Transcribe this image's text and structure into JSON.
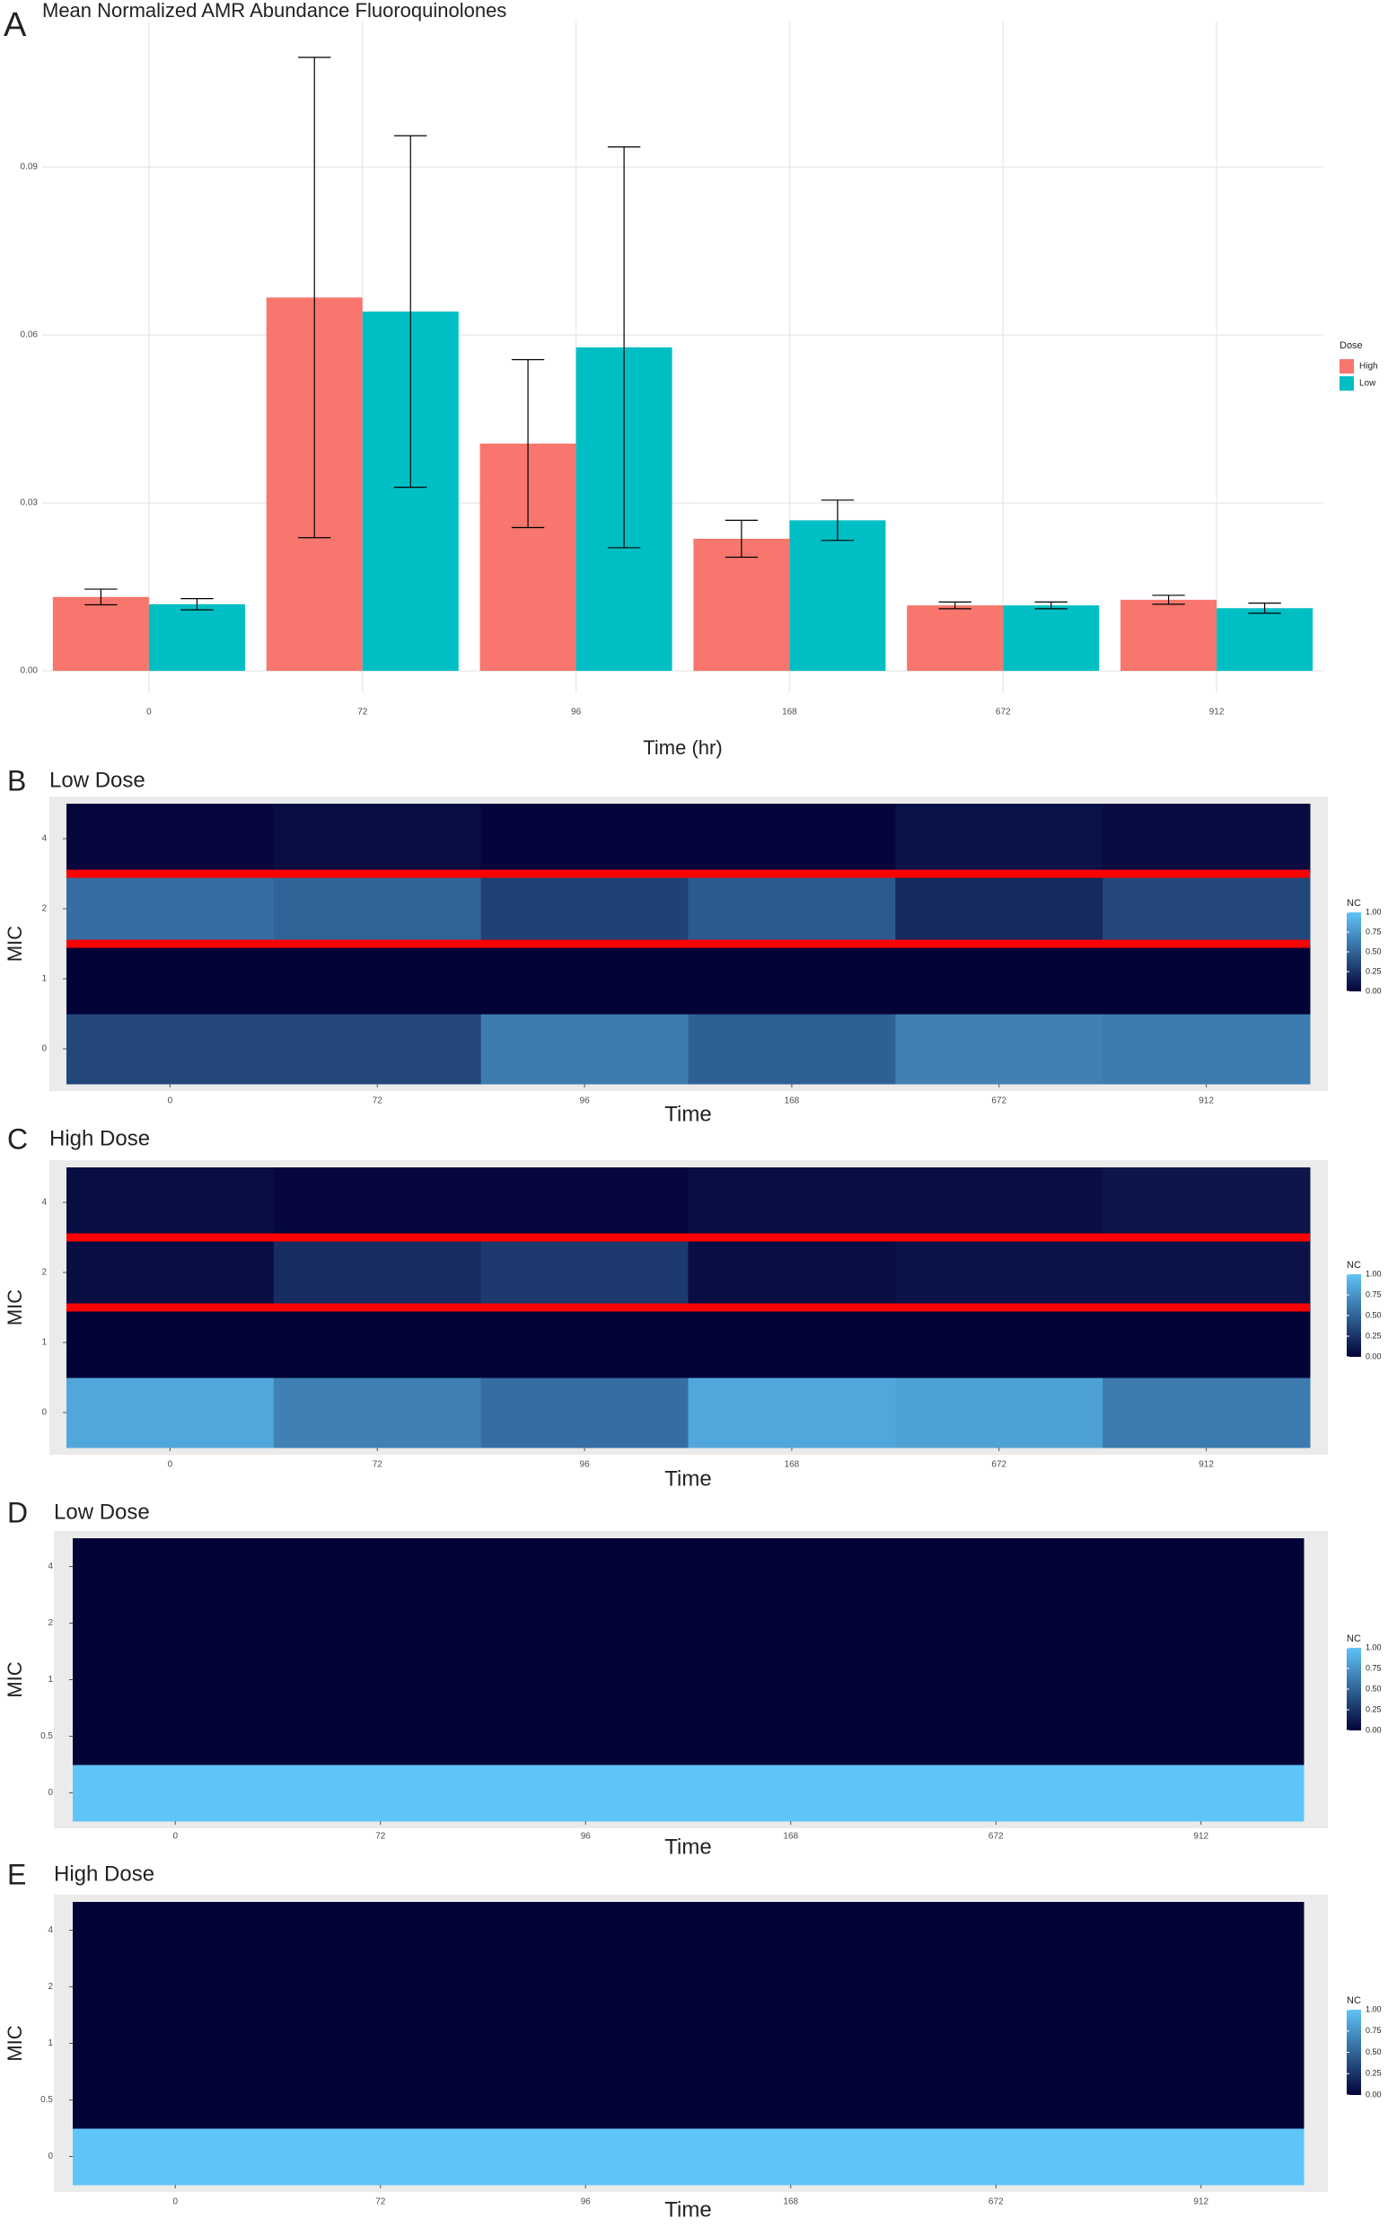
{
  "chart_data": [
    {
      "type": "bar",
      "panel_label": "A",
      "title": "Mean Normalized AMR Abundance Fluoroquinolones",
      "x_label": "Time (hr)",
      "categories": [
        "0",
        "72",
        "96",
        "168",
        "672",
        "912"
      ],
      "series": [
        {
          "name": "High",
          "color": "#F8766D",
          "values": [
            0.0132,
            0.0667,
            0.0406,
            0.0236,
            0.0117,
            0.0127
          ],
          "errors": [
            0.0014,
            0.0429,
            0.015,
            0.0033,
            0.0006,
            0.0008
          ]
        },
        {
          "name": "Low",
          "color": "#00BFC4",
          "values": [
            0.0119,
            0.0642,
            0.0578,
            0.0269,
            0.0117,
            0.0112
          ],
          "errors": [
            0.001,
            0.0314,
            0.0358,
            0.0036,
            0.0006,
            0.0009
          ]
        }
      ],
      "legend_title": "Dose",
      "legend": "right",
      "ylim": [
        -0.004,
        0.116
      ],
      "yticks": [
        {
          "value": 0,
          "label": "0.00"
        },
        {
          "value": 0.03,
          "label": "0.03"
        },
        {
          "value": 0.06,
          "label": "0.06"
        },
        {
          "value": 0.09,
          "label": "0.09"
        }
      ],
      "grid": true
    },
    {
      "type": "heatmap",
      "panel_label": "B",
      "title": "Low Dose",
      "x_label": "Time",
      "y_label": "MIC",
      "x": [
        "0",
        "72",
        "96",
        "168",
        "672",
        "912"
      ],
      "y": [
        "0",
        "1",
        "2",
        "4"
      ],
      "values": [
        [
          0.35,
          0.35,
          0.62,
          0.48,
          0.65,
          0.62
        ],
        [
          0,
          0,
          0,
          0,
          0,
          0
        ],
        [
          0.55,
          0.5,
          0.32,
          0.45,
          0.2,
          0.35
        ],
        [
          0.02,
          0.05,
          0.01,
          0.01,
          0.08,
          0.04
        ]
      ],
      "colorscale": {
        "low": "#030338",
        "high": "#5fc4f8"
      },
      "clim": [
        0,
        1
      ],
      "legend_title": "NC",
      "legend_ticks": [
        {
          "value": 0,
          "label": "0.00"
        },
        {
          "value": 0.25,
          "label": "0.25"
        },
        {
          "value": 0.5,
          "label": "0.50"
        },
        {
          "value": 0.75,
          "label": "0.75"
        },
        {
          "value": 1,
          "label": "1.00"
        }
      ],
      "threshold_line_color": "#ff0000"
    },
    {
      "type": "heatmap",
      "panel_label": "C",
      "title": "High Dose",
      "x_label": "Time",
      "y_label": "MIC",
      "x": [
        "0",
        "72",
        "96",
        "168",
        "672",
        "912"
      ],
      "y": [
        "0",
        "1",
        "2",
        "4"
      ],
      "values": [
        [
          0.85,
          0.65,
          0.55,
          0.85,
          0.82,
          0.62
        ],
        [
          0,
          0,
          0,
          0,
          0,
          0
        ],
        [
          0.05,
          0.22,
          0.28,
          0.05,
          0.08,
          0.08
        ],
        [
          0.05,
          0.02,
          0.02,
          0.05,
          0.05,
          0.1
        ]
      ],
      "colorscale": {
        "low": "#030338",
        "high": "#5fc4f8"
      },
      "clim": [
        0,
        1
      ],
      "legend_title": "NC",
      "legend_ticks": [
        {
          "value": 0,
          "label": "0.00"
        },
        {
          "value": 0.25,
          "label": "0.25"
        },
        {
          "value": 0.5,
          "label": "0.50"
        },
        {
          "value": 0.75,
          "label": "0.75"
        },
        {
          "value": 1,
          "label": "1.00"
        }
      ],
      "threshold_line_color": "#ff0000"
    },
    {
      "type": "heatmap",
      "panel_label": "D",
      "title": "Low Dose",
      "x_label": "Time",
      "y_label": "MIC",
      "x": [
        "0",
        "72",
        "96",
        "168",
        "672",
        "912"
      ],
      "y": [
        "0",
        "0.5",
        "1",
        "2",
        "4"
      ],
      "values": [
        [
          1,
          1,
          1,
          1,
          1,
          1
        ],
        [
          0,
          0,
          0,
          0,
          0,
          0
        ],
        [
          0,
          0,
          0,
          0,
          0,
          0
        ],
        [
          0,
          0,
          0,
          0,
          0,
          0
        ],
        [
          0,
          0,
          0,
          0,
          0,
          0
        ]
      ],
      "colorscale": {
        "low": "#030338",
        "high": "#5fc4f8"
      },
      "clim": [
        0,
        1
      ],
      "legend_title": "NC",
      "legend_ticks": [
        {
          "value": 0,
          "label": "0.00"
        },
        {
          "value": 0.25,
          "label": "0.25"
        },
        {
          "value": 0.5,
          "label": "0.50"
        },
        {
          "value": 0.75,
          "label": "0.75"
        },
        {
          "value": 1,
          "label": "1.00"
        }
      ]
    },
    {
      "type": "heatmap",
      "panel_label": "E",
      "title": "High Dose",
      "x_label": "Time",
      "y_label": "MIC",
      "x": [
        "0",
        "72",
        "96",
        "168",
        "672",
        "912"
      ],
      "y": [
        "0",
        "0.5",
        "1",
        "2",
        "4"
      ],
      "values": [
        [
          1,
          1,
          1,
          1,
          1,
          1
        ],
        [
          0,
          0,
          0,
          0,
          0,
          0
        ],
        [
          0,
          0,
          0,
          0,
          0,
          0
        ],
        [
          0,
          0,
          0,
          0,
          0,
          0
        ],
        [
          0,
          0,
          0,
          0,
          0,
          0
        ]
      ],
      "colorscale": {
        "low": "#030338",
        "high": "#5fc4f8"
      },
      "clim": [
        0,
        1
      ],
      "legend_title": "NC",
      "legend_ticks": [
        {
          "value": 0,
          "label": "0.00"
        },
        {
          "value": 0.25,
          "label": "0.25"
        },
        {
          "value": 0.5,
          "label": "0.50"
        },
        {
          "value": 0.75,
          "label": "0.75"
        },
        {
          "value": 1,
          "label": "1.00"
        }
      ]
    }
  ]
}
